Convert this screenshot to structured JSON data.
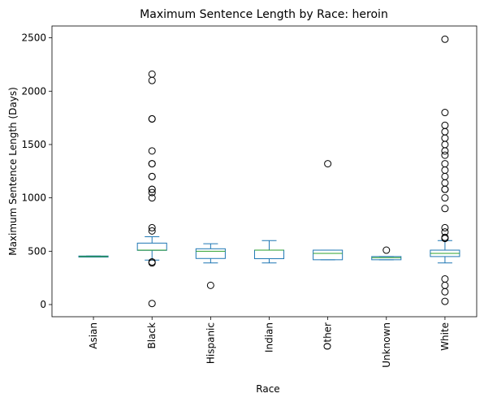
{
  "chart_data": {
    "type": "box",
    "title": "Maximum Sentence Length by Race: heroin",
    "x_label": "Race",
    "y_label": "Maximum Sentence Length (Days)",
    "categories": [
      "Asian",
      "Black",
      "Hispanic",
      "Indian",
      "Other",
      "Unknown",
      "White"
    ],
    "box_color": "#1f77b4",
    "median_color": "#2ca02c",
    "boxes": [
      {
        "whislo": 445,
        "q1": 445,
        "med": 450,
        "q3": 455,
        "whishi": 455,
        "fliers": []
      },
      {
        "whislo": 417,
        "q1": 508,
        "med": 510,
        "q3": 576,
        "whishi": 636,
        "fliers": [
          2160,
          2100,
          1740,
          1740,
          1440,
          1320,
          1320,
          1200,
          1200,
          1080,
          1080,
          1050,
          1000,
          720,
          690,
          400,
          390,
          10
        ]
      },
      {
        "whislo": 390,
        "q1": 432,
        "med": 500,
        "q3": 523,
        "whishi": 570,
        "fliers": [
          180
        ]
      },
      {
        "whislo": 390,
        "q1": 430,
        "med": 510,
        "q3": 510,
        "whishi": 600,
        "fliers": []
      },
      {
        "whislo": 420,
        "q1": 420,
        "med": 480,
        "q3": 510,
        "whishi": 510,
        "fliers": [
          1320
        ]
      },
      {
        "whislo": 420,
        "q1": 420,
        "med": 440,
        "q3": 450,
        "whishi": 450,
        "fliers": [
          510
        ]
      },
      {
        "whislo": 390,
        "q1": 450,
        "med": 480,
        "q3": 510,
        "whishi": 600,
        "fliers": [
          2487,
          1800,
          1680,
          1620,
          1560,
          1500,
          1440,
          1400,
          1320,
          1260,
          1200,
          1140,
          1080,
          1080,
          1000,
          900,
          720,
          680,
          630,
          620,
          240,
          180,
          120,
          30
        ]
      }
    ],
    "ylim": [
      -114,
      2611
    ],
    "yticks": [
      0,
      500,
      1000,
      1500,
      2000,
      2500
    ]
  }
}
